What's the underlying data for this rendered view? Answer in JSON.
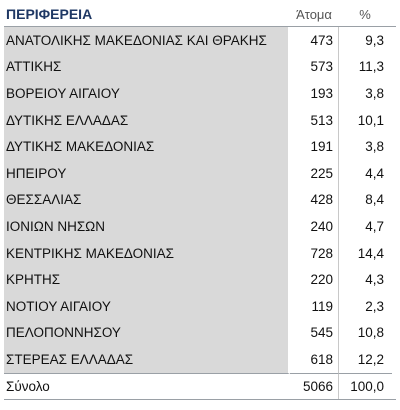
{
  "table": {
    "headers": {
      "region": "ΠΕΡΙΦΕΡΕΙΑ",
      "count": "Άτομα",
      "pct": "%"
    },
    "rows": [
      {
        "region": "ΑΝΑΤΟΛΙΚΗΣ ΜΑΚΕΔΟΝΙΑΣ ΚΑΙ ΘΡΑΚΗΣ",
        "count": "473",
        "pct": "9,3"
      },
      {
        "region": "ΑΤΤΙΚΗΣ",
        "count": "573",
        "pct": "11,3"
      },
      {
        "region": "ΒΟΡΕΙΟΥ ΑΙΓΑΙΟΥ",
        "count": "193",
        "pct": "3,8"
      },
      {
        "region": "ΔΥΤΙΚΗΣ ΕΛΛΑΔΑΣ",
        "count": "513",
        "pct": "10,1"
      },
      {
        "region": "ΔΥΤΙΚΗΣ ΜΑΚΕΔΟΝΙΑΣ",
        "count": "191",
        "pct": "3,8"
      },
      {
        "region": "ΗΠΕΙΡΟΥ",
        "count": "225",
        "pct": "4,4"
      },
      {
        "region": "ΘΕΣΣΑΛΙΑΣ",
        "count": "428",
        "pct": "8,4"
      },
      {
        "region": "ΙΟΝΙΩΝ ΝΗΣΩΝ",
        "count": "240",
        "pct": "4,7"
      },
      {
        "region": "ΚΕΝΤΡΙΚΗΣ ΜΑΚΕΔΟΝΙΑΣ",
        "count": "728",
        "pct": "14,4"
      },
      {
        "region": "ΚΡΗΤΗΣ",
        "count": "220",
        "pct": "4,3"
      },
      {
        "region": "ΝΟΤΙΟΥ ΑΙΓΑΙΟΥ",
        "count": "119",
        "pct": "2,3"
      },
      {
        "region": "ΠΕΛΟΠΟΝΝΗΣΟΥ",
        "count": "545",
        "pct": "10,8"
      },
      {
        "region": "ΣΤΕΡΕΑΣ ΕΛΛΑΔΑΣ",
        "count": "618",
        "pct": "12,2"
      }
    ],
    "total": {
      "region": "Σύνολο",
      "count": "5066",
      "pct": "100,0"
    }
  }
}
